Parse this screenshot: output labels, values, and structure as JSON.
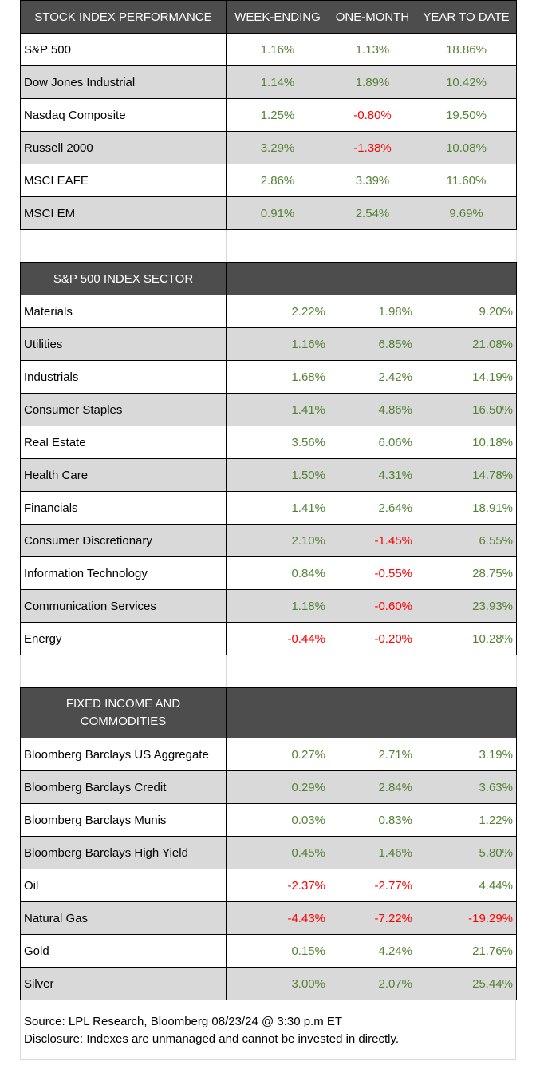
{
  "stock": {
    "headers": [
      "STOCK INDEX PERFORMANCE",
      "WEEK-ENDING",
      "ONE-MONTH",
      "YEAR TO DATE"
    ],
    "rows": [
      {
        "name": "S&P 500",
        "week": "1.16%",
        "month": "1.13%",
        "ytd": "18.86%"
      },
      {
        "name": "Dow Jones Industrial",
        "week": "1.14%",
        "month": "1.89%",
        "ytd": "10.42%"
      },
      {
        "name": "Nasdaq Composite",
        "week": "1.25%",
        "month": "-0.80%",
        "ytd": "19.50%"
      },
      {
        "name": "Russell 2000",
        "week": "3.29%",
        "month": "-1.38%",
        "ytd": "10.08%"
      },
      {
        "name": "MSCI EAFE",
        "week": "2.86%",
        "month": "3.39%",
        "ytd": "11.60%"
      },
      {
        "name": "MSCI EM",
        "week": "0.91%",
        "month": "2.54%",
        "ytd": "9.69%"
      }
    ]
  },
  "sector": {
    "header": "S&P 500 INDEX SECTOR",
    "rows": [
      {
        "name": "Materials",
        "week": "2.22%",
        "month": "1.98%",
        "ytd": "9.20%"
      },
      {
        "name": "Utilities",
        "week": "1.16%",
        "month": "6.85%",
        "ytd": "21.08%"
      },
      {
        "name": "Industrials",
        "week": "1.68%",
        "month": "2.42%",
        "ytd": "14.19%"
      },
      {
        "name": "Consumer Staples",
        "week": "1.41%",
        "month": "4.86%",
        "ytd": "16.50%"
      },
      {
        "name": "Real Estate",
        "week": "3.56%",
        "month": "6.06%",
        "ytd": "10.18%"
      },
      {
        "name": "Health Care",
        "week": "1.50%",
        "month": "4.31%",
        "ytd": "14.78%"
      },
      {
        "name": "Financials",
        "week": "1.41%",
        "month": "2.64%",
        "ytd": "18.91%"
      },
      {
        "name": "Consumer Discretionary",
        "week": "2.10%",
        "month": "-1.45%",
        "ytd": "6.55%"
      },
      {
        "name": "Information Technology",
        "week": "0.84%",
        "month": "-0.55%",
        "ytd": "28.75%"
      },
      {
        "name": "Communication Services",
        "week": "1.18%",
        "month": "-0.60%",
        "ytd": "23.93%"
      },
      {
        "name": "Energy",
        "week": "-0.44%",
        "month": "-0.20%",
        "ytd": "10.28%"
      }
    ]
  },
  "fixed": {
    "header": "FIXED INCOME AND COMMODITIES",
    "rows": [
      {
        "name": "Bloomberg Barclays US Aggregate",
        "week": "0.27%",
        "month": "2.71%",
        "ytd": "3.19%"
      },
      {
        "name": "Bloomberg Barclays Credit",
        "week": "0.29%",
        "month": "2.84%",
        "ytd": "3.63%"
      },
      {
        "name": "Bloomberg Barclays Munis",
        "week": "0.03%",
        "month": "0.83%",
        "ytd": "1.22%"
      },
      {
        "name": "Bloomberg Barclays High Yield",
        "week": "0.45%",
        "month": "1.46%",
        "ytd": "5.80%"
      },
      {
        "name": "Oil",
        "week": "-2.37%",
        "month": "-2.77%",
        "ytd": "4.44%"
      },
      {
        "name": "Natural Gas",
        "week": "-4.43%",
        "month": "-7.22%",
        "ytd": "-19.29%"
      },
      {
        "name": "Gold",
        "week": "0.15%",
        "month": "4.24%",
        "ytd": "21.76%"
      },
      {
        "name": "Silver",
        "week": "3.00%",
        "month": "2.07%",
        "ytd": "25.44%"
      }
    ]
  },
  "footer": {
    "source": "Source: LPL Research, Bloomberg 08/23/24 @ 3:30 p.m ET",
    "disclosure": "Disclosure: Indexes are unmanaged and cannot be invested in directly."
  },
  "colors": {
    "positive": "#548235",
    "negative": "#ff0000",
    "header_bg": "#4d4d4d",
    "alt_row": "#d9d9d9"
  }
}
